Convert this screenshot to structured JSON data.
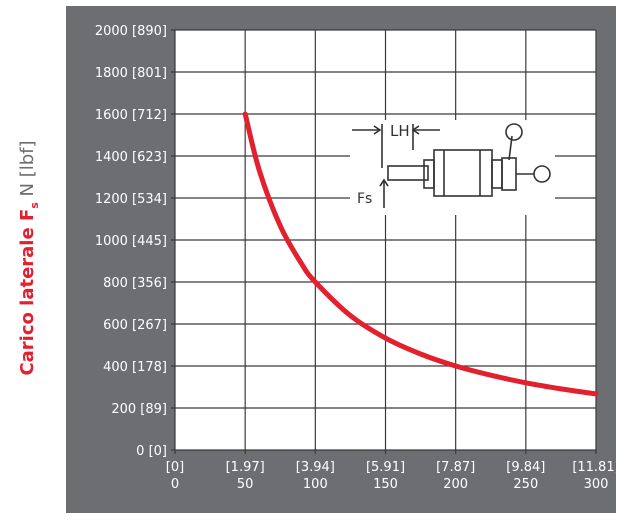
{
  "chart_data": {
    "type": "line",
    "title": "",
    "ylabel": {
      "bold_part": "Carico laterale F",
      "subscript": "s",
      "light_part": " N [lbf]"
    },
    "xlabel": "",
    "x_ticks": [
      {
        "value": 0,
        "top": "[0]",
        "bottom": "0"
      },
      {
        "value": 50,
        "top": "[1.97]",
        "bottom": "50"
      },
      {
        "value": 100,
        "top": "[3.94]",
        "bottom": "100"
      },
      {
        "value": 150,
        "top": "[5.91]",
        "bottom": "150"
      },
      {
        "value": 200,
        "top": "[7.87]",
        "bottom": "200"
      },
      {
        "value": 250,
        "top": "[9.84]",
        "bottom": "250"
      },
      {
        "value": 300,
        "top": "[11.81]",
        "bottom": "300"
      }
    ],
    "y_ticks": [
      {
        "value": 0,
        "label": "0 [0]"
      },
      {
        "value": 200,
        "label": "200 [89]"
      },
      {
        "value": 400,
        "label": "400 [178]"
      },
      {
        "value": 600,
        "label": "600 [267]"
      },
      {
        "value": 800,
        "label": "800 [356]"
      },
      {
        "value": 1000,
        "label": "1000 [445]"
      },
      {
        "value": 1200,
        "label": "1200 [534]"
      },
      {
        "value": 1400,
        "label": "1400 [623]"
      },
      {
        "value": 1600,
        "label": "1600 [712]"
      },
      {
        "value": 1800,
        "label": "1800 [801]"
      },
      {
        "value": 2000,
        "label": "2000 [890]"
      }
    ],
    "xlim": [
      0,
      300
    ],
    "ylim": [
      0,
      2000
    ],
    "grid": true,
    "series": [
      {
        "color": "#e2202e",
        "points": [
          [
            50,
            1600
          ],
          [
            60,
            1333
          ],
          [
            75,
            1067
          ],
          [
            90,
            889
          ],
          [
            100,
            800
          ],
          [
            125,
            640
          ],
          [
            150,
            533
          ],
          [
            175,
            457
          ],
          [
            200,
            400
          ],
          [
            225,
            356
          ],
          [
            250,
            320
          ],
          [
            275,
            291
          ],
          [
            300,
            267
          ]
        ]
      }
    ],
    "inset": {
      "label_lh": "LH",
      "label_fs": "Fs"
    },
    "colors": {
      "panel": "#6d6e71",
      "plot_bg": "#ffffff",
      "grid": "#3a3a3a",
      "curve": "#e2202e",
      "tick_text": "#ffffff",
      "ylabel_bold": "#e2202e",
      "ylabel_light": "#6d6e71"
    }
  }
}
